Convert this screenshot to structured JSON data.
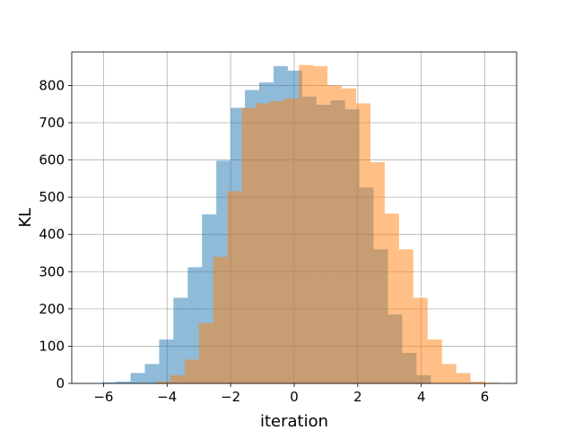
{
  "chart_data": {
    "type": "bar",
    "title": "",
    "xlabel": "iteration",
    "ylabel": "KL",
    "xlim": [
      -7,
      7
    ],
    "ylim": [
      0,
      890
    ],
    "xticks": [
      -6,
      -4,
      -2,
      0,
      2,
      4,
      6
    ],
    "yticks": [
      0,
      100,
      200,
      300,
      400,
      500,
      600,
      700,
      800
    ],
    "grid": true,
    "legend": "none",
    "series": [
      {
        "color": "#1f77b4",
        "opacity": 0.5,
        "bin_edges": [
          -6.05,
          -5.6,
          -5.15,
          -4.7,
          -4.25,
          -3.8,
          -3.35,
          -2.9,
          -2.45,
          -2.0,
          -1.55,
          -1.1,
          -0.65,
          -0.2,
          0.25,
          0.7,
          1.15,
          1.6,
          2.05,
          2.5,
          2.95,
          3.4,
          3.85,
          4.3
        ],
        "values": [
          3,
          5,
          28,
          52,
          118,
          230,
          312,
          454,
          598,
          740,
          788,
          808,
          852,
          840,
          770,
          748,
          760,
          736,
          526,
          360,
          185,
          82,
          22
        ]
      },
      {
        "color": "#ff7f0e",
        "opacity": 0.5,
        "bin_edges": [
          -4.35,
          -3.9,
          -3.45,
          -3.0,
          -2.55,
          -2.1,
          -1.65,
          -1.2,
          -0.75,
          -0.3,
          0.15,
          0.6,
          1.05,
          1.5,
          1.95,
          2.4,
          2.85,
          3.3,
          3.75,
          4.2,
          4.65,
          5.1,
          5.55,
          6.0,
          6.45
        ],
        "values": [
          5,
          22,
          64,
          162,
          340,
          516,
          740,
          752,
          758,
          765,
          855,
          852,
          800,
          792,
          752,
          594,
          456,
          360,
          230,
          118,
          52,
          28,
          5,
          2
        ]
      }
    ]
  }
}
